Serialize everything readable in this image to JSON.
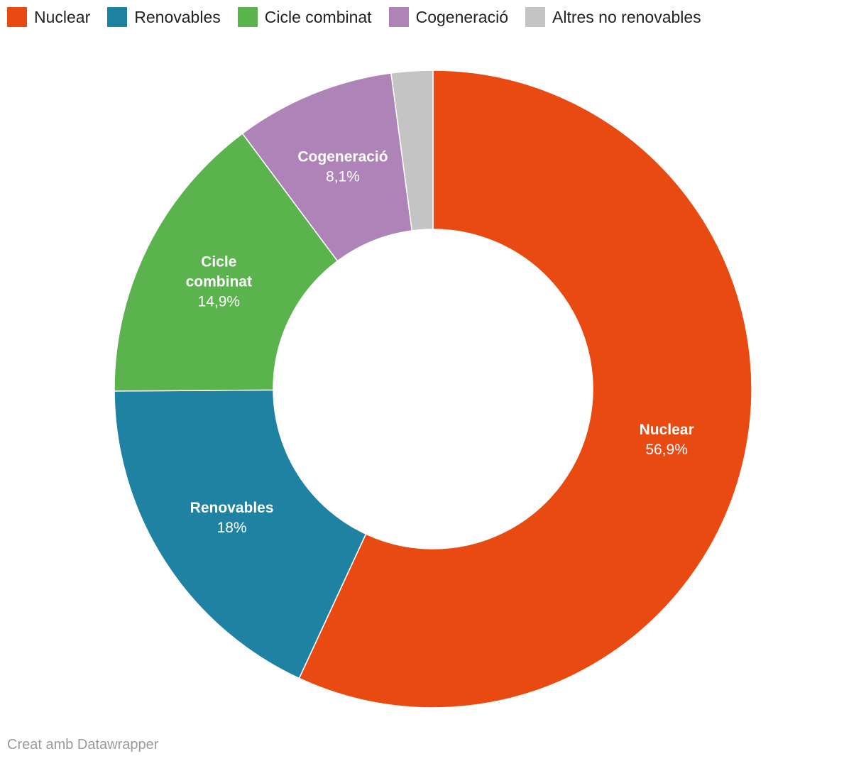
{
  "chart_data": {
    "type": "pie",
    "variant": "donut",
    "legend_position": "top-left",
    "title": "",
    "slices": [
      {
        "name": "Nuclear",
        "value": 56.9,
        "display_value": "56,9%",
        "color": "#e94a12",
        "label_lines": [
          "Nuclear"
        ]
      },
      {
        "name": "Renovables",
        "value": 18,
        "display_value": "18%",
        "color": "#1f82a2",
        "label_lines": [
          "Renovables"
        ]
      },
      {
        "name": "Cicle combinat",
        "value": 14.9,
        "display_value": "14,9%",
        "color": "#5ab34d",
        "label_lines": [
          "Cicle",
          "combinat"
        ]
      },
      {
        "name": "Cogeneració",
        "value": 8.1,
        "display_value": "8,1%",
        "color": "#ae83b8",
        "label_lines": [
          "Cogeneració"
        ]
      },
      {
        "name": "Altres no renovables",
        "value": 2.1,
        "display_value": "",
        "color": "#c4c4c4",
        "label_lines": []
      }
    ]
  },
  "footer": {
    "credit": "Creat amb Datawrapper"
  }
}
